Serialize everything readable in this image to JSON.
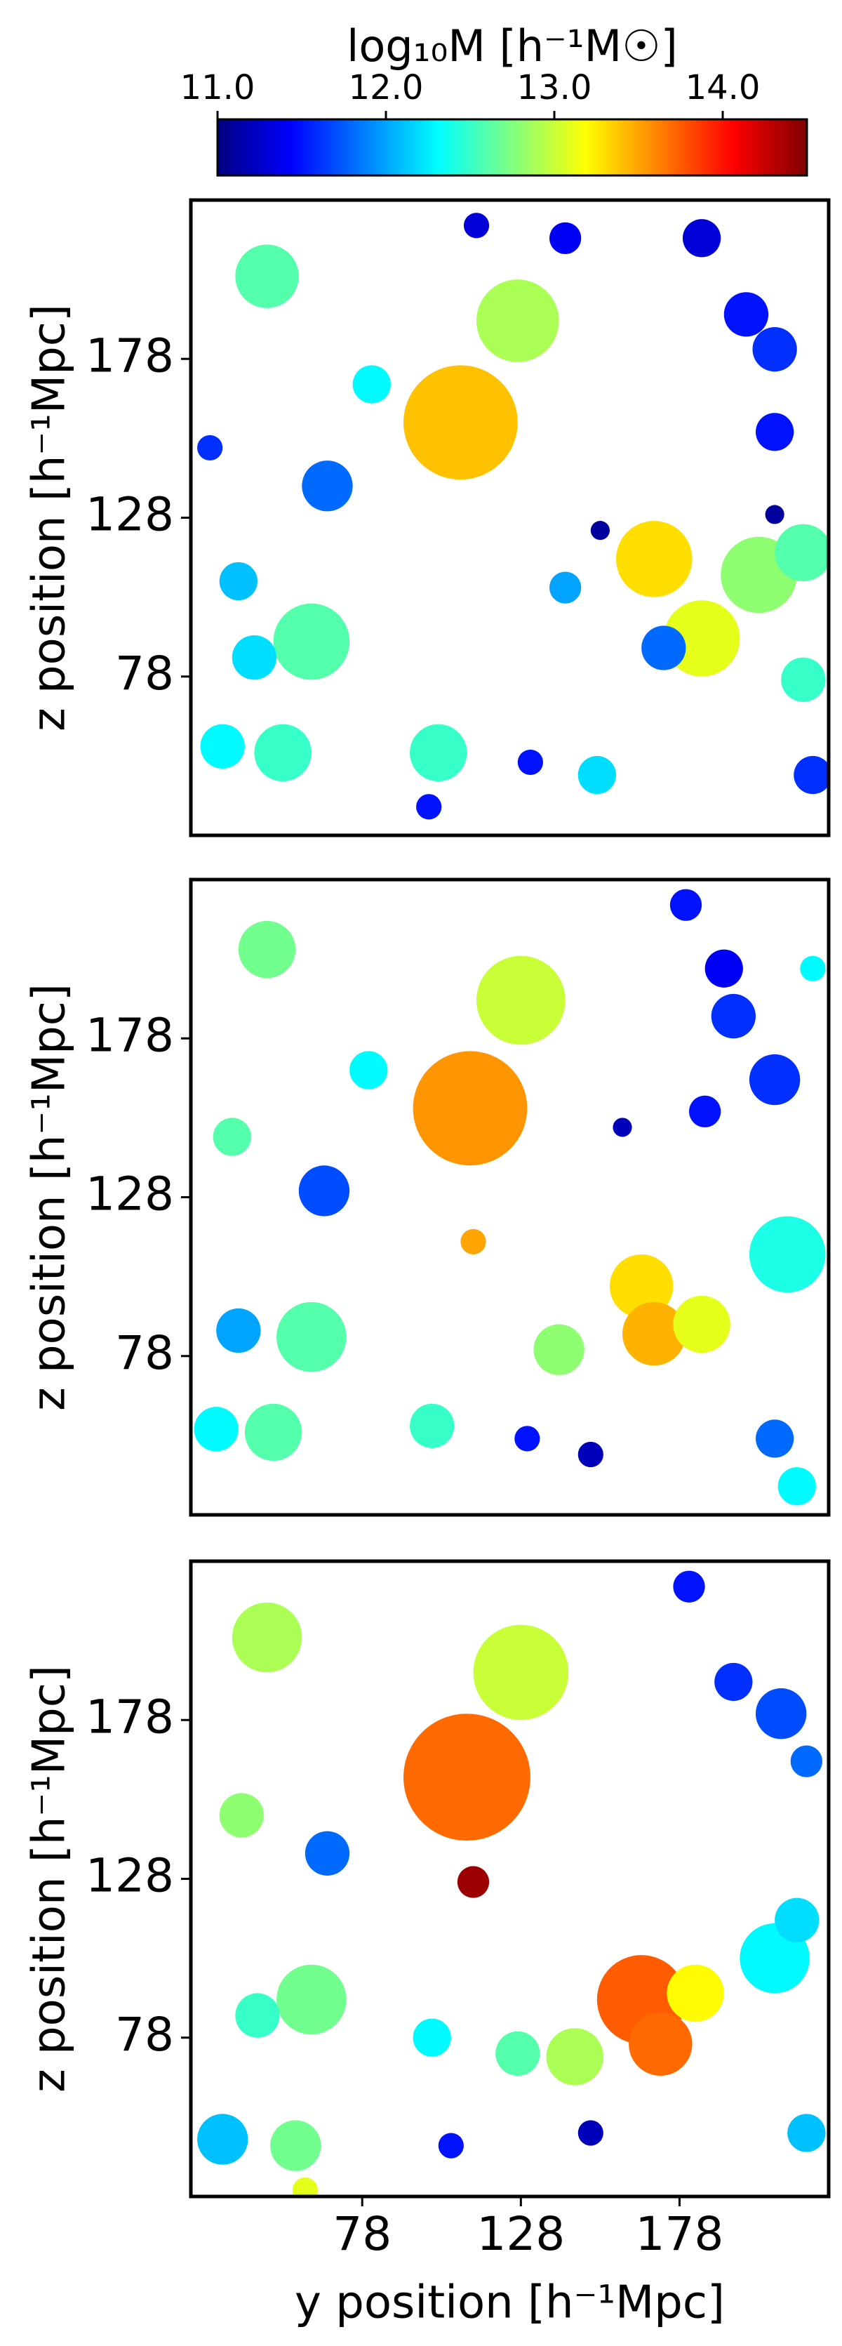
{
  "colorbar": {
    "label": "log₁₀M [h⁻¹M☉]",
    "lim": [
      11,
      14.5
    ],
    "colormap": "jet",
    "ticks": [
      {
        "value": 11,
        "label": "11.0"
      },
      {
        "value": 12,
        "label": "12.0"
      },
      {
        "value": 13,
        "label": "13.0"
      },
      {
        "value": 14,
        "label": "14.0"
      }
    ]
  },
  "chart_data": [
    {
      "type": "scatter",
      "ylabel": "z position [h⁻¹Mpc]",
      "xlim": [
        24,
        225
      ],
      "ylim": [
        28,
        228
      ],
      "yticks": [
        78,
        128,
        178
      ],
      "x": [
        109,
        127,
        48,
        81,
        170,
        185,
        203,
        217,
        62,
        44,
        67,
        39,
        53,
        34,
        102,
        173,
        199,
        208,
        185,
        208,
        217,
        142,
        114,
        152,
        131,
        30,
        142,
        220,
        153,
        208,
        99
      ],
      "y": [
        158,
        190,
        204,
        170,
        115,
        90,
        110,
        117,
        89,
        84,
        138,
        108,
        54,
        56,
        54,
        87,
        192,
        181,
        216,
        155,
        77,
        216,
        220,
        47,
        51,
        150,
        106,
        47,
        124,
        129,
        37
      ],
      "r": [
        18,
        13,
        10,
        6,
        12,
        12,
        12,
        9,
        12,
        7,
        8,
        6,
        9,
        7,
        9,
        7,
        7,
        7,
        6,
        6,
        7,
        5,
        4,
        6,
        4,
        4,
        5,
        6,
        3,
        3,
        4
      ],
      "mass": [
        13.4,
        12.9,
        12.6,
        12.3,
        13.3,
        13.1,
        12.8,
        12.6,
        12.6,
        12.2,
        11.8,
        12.1,
        12.5,
        12.3,
        12.5,
        11.8,
        11.5,
        11.6,
        11.3,
        11.5,
        12.5,
        11.4,
        11.3,
        12.2,
        11.5,
        11.6,
        12.0,
        11.6,
        11.1,
        11.1,
        11.5
      ]
    },
    {
      "type": "scatter",
      "ylabel": "z position [h⁻¹Mpc]",
      "xlim": [
        24,
        225
      ],
      "ylim": [
        28,
        228
      ],
      "yticks": [
        78,
        128,
        178
      ],
      "x": [
        112,
        128,
        48,
        166,
        170,
        185,
        212,
        62,
        39,
        66,
        37,
        80,
        50,
        32,
        100,
        140,
        195,
        208,
        192,
        113,
        186,
        150,
        130,
        208,
        215,
        180,
        220,
        160
      ],
      "y": [
        156,
        190,
        206,
        100,
        85,
        88,
        110,
        84,
        86,
        130,
        147,
        168,
        54,
        55,
        56,
        80,
        185,
        165,
        200,
        114,
        155,
        47,
        52,
        52,
        37,
        220,
        200,
        150
      ],
      "r": [
        18,
        14,
        9,
        10,
        10,
        9,
        12,
        11,
        7,
        8,
        6,
        6,
        9,
        7,
        7,
        8,
        7,
        8,
        6,
        4,
        5,
        4,
        4,
        6,
        6,
        5,
        4,
        3
      ],
      "mass": [
        13.55,
        13.0,
        12.7,
        13.3,
        13.45,
        13.1,
        12.4,
        12.6,
        12.0,
        11.7,
        12.6,
        12.3,
        12.6,
        12.3,
        12.5,
        12.8,
        11.6,
        11.6,
        11.4,
        13.5,
        11.5,
        11.2,
        11.5,
        11.8,
        12.3,
        11.5,
        12.3,
        11.2
      ]
    },
    {
      "type": "scatter",
      "ylabel": "z position [h⁻¹Mpc]",
      "xlabel": "y position [h⁻¹Mpc]",
      "xlim": [
        24,
        225
      ],
      "ylim": [
        28,
        228
      ],
      "yticks": [
        78,
        128,
        178
      ],
      "xticks": [
        78,
        128,
        178
      ],
      "x": [
        111,
        113,
        128,
        48,
        40,
        166,
        172,
        183,
        208,
        62,
        45,
        215,
        210,
        195,
        218,
        34,
        57,
        145,
        127,
        100,
        67,
        218,
        150,
        106,
        60,
        181
      ],
      "y": [
        160,
        127,
        193,
        204,
        148,
        90,
        76,
        92,
        103,
        90,
        85,
        115,
        180,
        190,
        165,
        46,
        44,
        72,
        73,
        78,
        136,
        48,
        48,
        44,
        30,
        220
      ],
      "r": [
        20,
        5,
        15,
        11,
        7,
        14,
        10,
        9,
        11,
        11,
        7,
        7,
        8,
        6,
        5,
        8,
        8,
        9,
        7,
        6,
        7,
        6,
        4,
        4,
        4,
        5
      ],
      "mass": [
        13.7,
        14.4,
        13.0,
        12.9,
        12.8,
        13.75,
        13.7,
        13.2,
        12.3,
        12.7,
        12.5,
        12.2,
        11.7,
        11.6,
        11.8,
        12.1,
        12.7,
        12.9,
        12.6,
        12.3,
        11.8,
        12.1,
        11.2,
        11.5,
        13.1,
        11.5
      ]
    }
  ]
}
